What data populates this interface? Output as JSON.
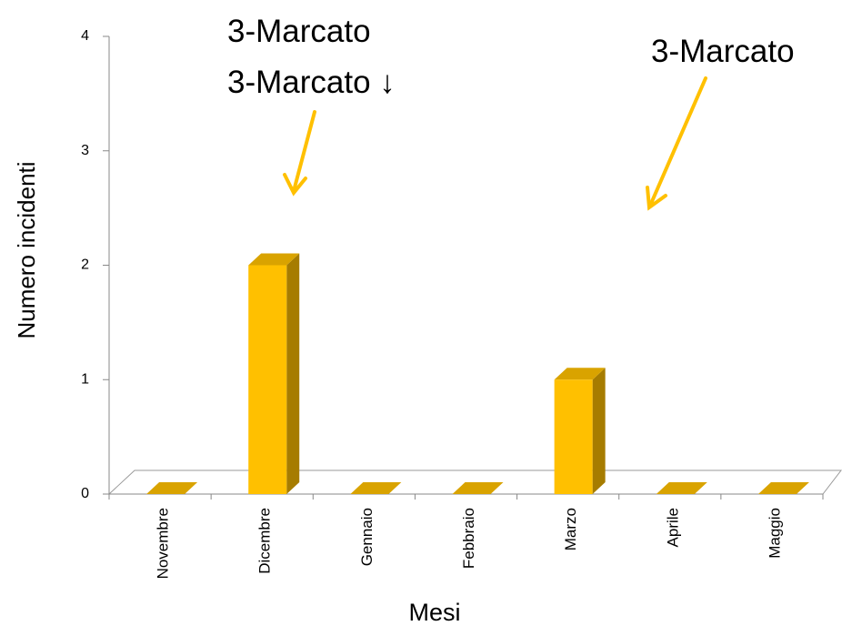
{
  "chart_data": {
    "type": "bar",
    "y_label": "Numero incidenti",
    "x_label": "Mesi",
    "annotations": [
      "3-Marcato",
      "3-Marcato ↓",
      "3-Marcato"
    ],
    "categories": [
      "Novembre",
      "Dicembre",
      "Gennaio",
      "Febbraio",
      "Marzo",
      "Aprile",
      "Maggio"
    ],
    "values": [
      0,
      2,
      0,
      0,
      1,
      0,
      0
    ],
    "color": "#ffc000",
    "side_color": "#a67c00",
    "top_color": "#d9a300",
    "ylim": [
      0,
      4
    ],
    "yticks": [
      0,
      1,
      2,
      3,
      4
    ]
  }
}
